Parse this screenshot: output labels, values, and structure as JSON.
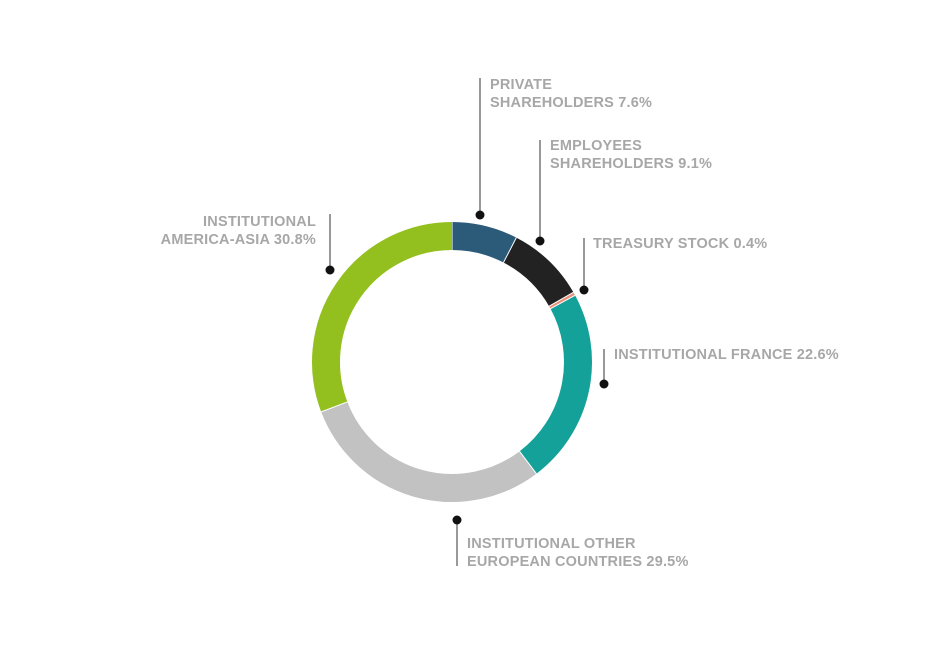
{
  "chart_data": {
    "type": "pie",
    "style": "donut",
    "categories": [
      "PRIVATE SHAREHOLDERS",
      "EMPLOYEES SHAREHOLDERS",
      "TREASURY STOCK",
      "INSTITUTIONAL FRANCE",
      "INSTITUTIONAL OTHER EUROPEAN COUNTRIES",
      "INSTITUTIONAL AMERICA-ASIA"
    ],
    "values": [
      7.6,
      9.1,
      0.4,
      22.6,
      29.5,
      30.8
    ],
    "unit": "%",
    "colors": [
      "#2b5b78",
      "#222222",
      "#e8907a",
      "#13a19a",
      "#c2c2c2",
      "#93c01f"
    ],
    "labels": [
      {
        "lines": [
          "PRIVATE",
          "SHAREHOLDERS 7.6%"
        ]
      },
      {
        "lines": [
          "EMPLOYEES",
          "SHAREHOLDERS 9.1%"
        ]
      },
      {
        "lines": [
          "TREASURY STOCK 0.4%"
        ]
      },
      {
        "lines": [
          "INSTITUTIONAL FRANCE 22.6%"
        ]
      },
      {
        "lines": [
          "INSTITUTIONAL OTHER",
          "EUROPEAN COUNTRIES 29.5%"
        ]
      },
      {
        "lines": [
          "INSTITUTIONAL",
          "AMERICA-ASIA 30.8%"
        ]
      }
    ],
    "start_angle": "12 o'clock",
    "direction": "clockwise",
    "legend": "none",
    "grid": false
  }
}
